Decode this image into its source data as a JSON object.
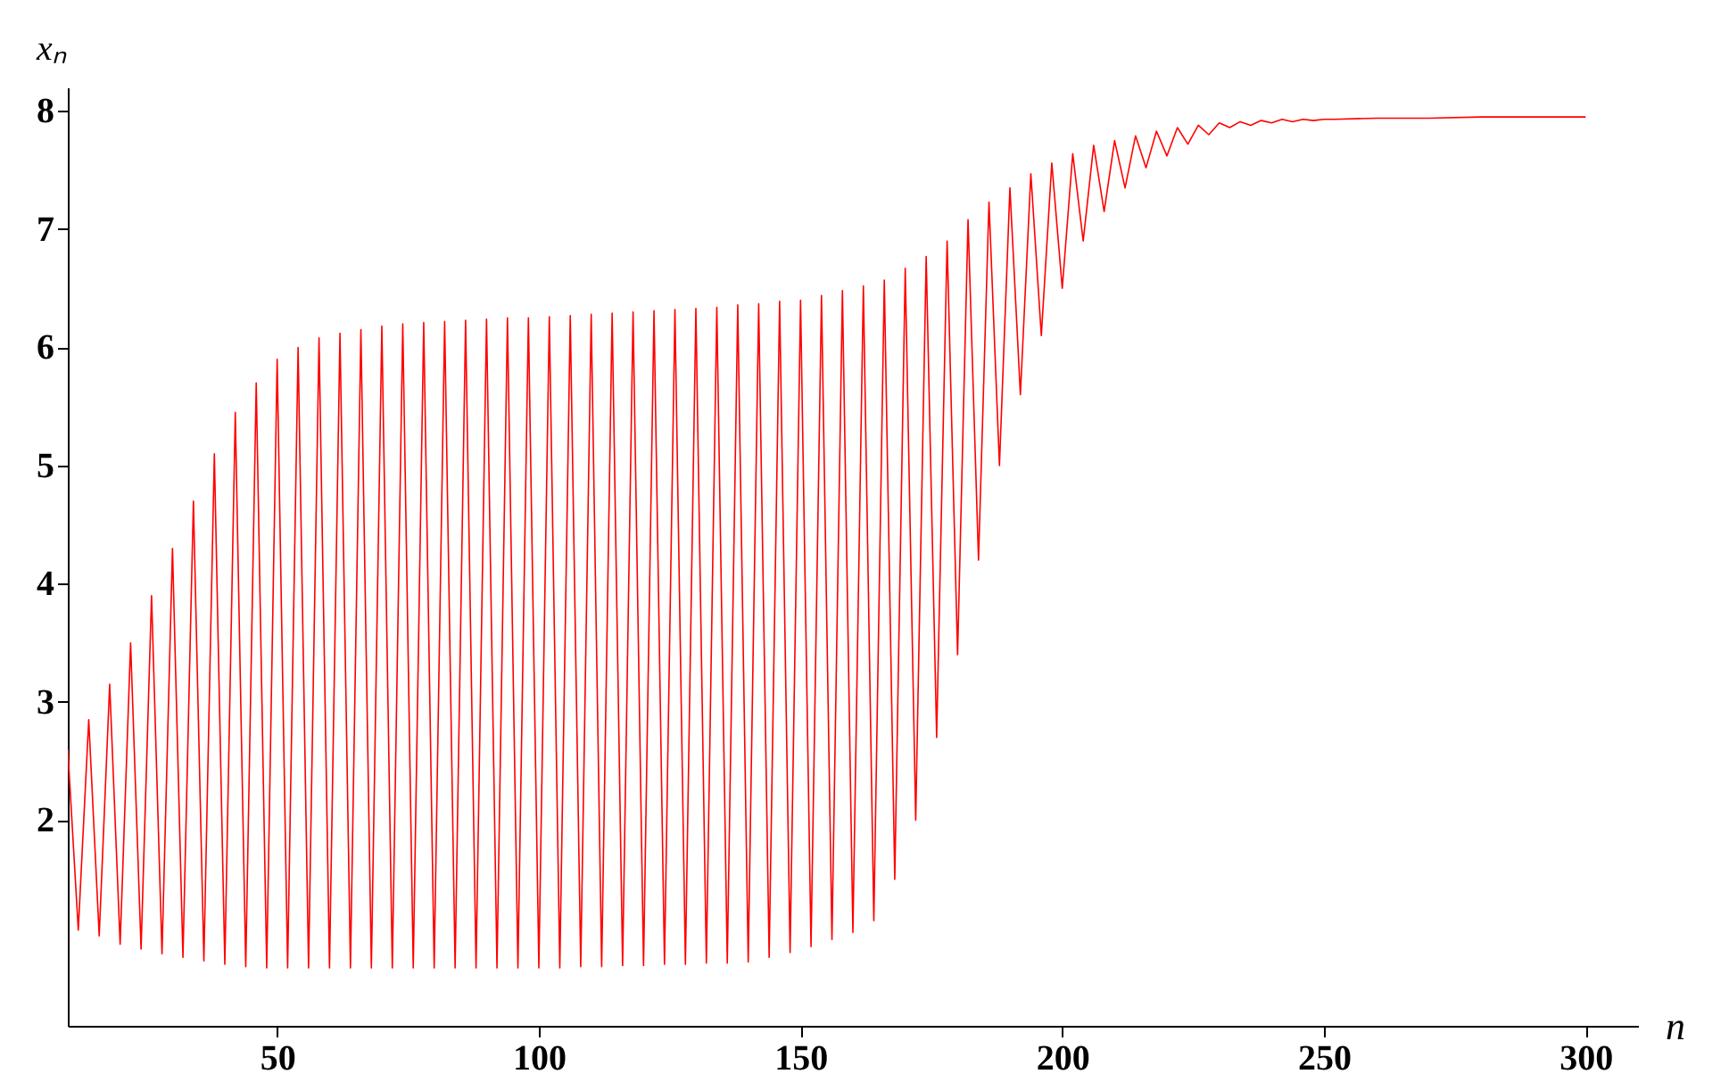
{
  "chart_data": {
    "type": "line",
    "xlabel": "n",
    "ylabel": "xₙ",
    "grid": false,
    "marker": "none",
    "line_style": "solid",
    "xlim": [
      10,
      310
    ],
    "xticks": [
      50,
      100,
      150,
      200,
      250,
      300
    ],
    "ylim": [
      0.26,
      8.2
    ],
    "yticks": [
      2,
      3,
      4,
      5,
      6,
      7,
      8
    ],
    "series": [
      {
        "color": "#ff0000",
        "x": [
          10,
          12,
          14,
          16,
          18,
          20,
          22,
          24,
          26,
          28,
          30,
          32,
          34,
          36,
          38,
          40,
          42,
          44,
          46,
          48,
          50,
          52,
          54,
          56,
          58,
          60,
          62,
          64,
          66,
          68,
          70,
          72,
          74,
          76,
          78,
          80,
          82,
          84,
          86,
          88,
          90,
          92,
          94,
          96,
          98,
          100,
          102,
          104,
          106,
          108,
          110,
          112,
          114,
          116,
          118,
          120,
          122,
          124,
          126,
          128,
          130,
          132,
          134,
          136,
          138,
          140,
          142,
          144,
          146,
          148,
          150,
          152,
          154,
          156,
          158,
          160,
          162,
          164,
          166,
          168,
          170,
          172,
          174,
          176,
          178,
          180,
          182,
          184,
          186,
          188,
          190,
          192,
          194,
          196,
          198,
          200,
          202,
          204,
          206,
          208,
          210,
          212,
          214,
          216,
          218,
          220,
          222,
          224,
          226,
          228,
          230,
          232,
          234,
          236,
          238,
          240,
          242,
          244,
          246,
          248,
          250,
          252,
          260,
          270,
          280,
          290,
          300
        ],
        "values": [
          2.6,
          1.07,
          2.85,
          1.02,
          3.15,
          0.95,
          3.5,
          0.91,
          3.9,
          0.87,
          4.3,
          0.84,
          4.7,
          0.81,
          5.1,
          0.78,
          5.45,
          0.76,
          5.7,
          0.75,
          5.9,
          0.75,
          6.0,
          0.75,
          6.08,
          0.75,
          6.12,
          0.75,
          6.15,
          0.75,
          6.18,
          0.75,
          6.2,
          0.75,
          6.21,
          0.75,
          6.22,
          0.75,
          6.23,
          0.75,
          6.24,
          0.75,
          6.25,
          0.75,
          6.25,
          0.75,
          6.26,
          0.75,
          6.27,
          0.76,
          6.28,
          0.76,
          6.29,
          0.77,
          6.3,
          0.77,
          6.31,
          0.78,
          6.32,
          0.78,
          6.33,
          0.79,
          6.34,
          0.79,
          6.36,
          0.8,
          6.37,
          0.84,
          6.39,
          0.88,
          6.4,
          0.93,
          6.44,
          0.99,
          6.48,
          1.05,
          6.52,
          1.15,
          6.57,
          1.5,
          6.67,
          2.0,
          6.77,
          2.7,
          6.9,
          3.4,
          7.08,
          4.2,
          7.23,
          5.0,
          7.35,
          5.6,
          7.47,
          6.1,
          7.56,
          6.5,
          7.64,
          6.9,
          7.71,
          7.15,
          7.75,
          7.35,
          7.79,
          7.52,
          7.83,
          7.62,
          7.86,
          7.72,
          7.88,
          7.8,
          7.9,
          7.86,
          7.91,
          7.88,
          7.92,
          7.9,
          7.93,
          7.91,
          7.93,
          7.92,
          7.93,
          7.93,
          7.94,
          7.94,
          7.95,
          7.95,
          7.95
        ]
      }
    ]
  }
}
